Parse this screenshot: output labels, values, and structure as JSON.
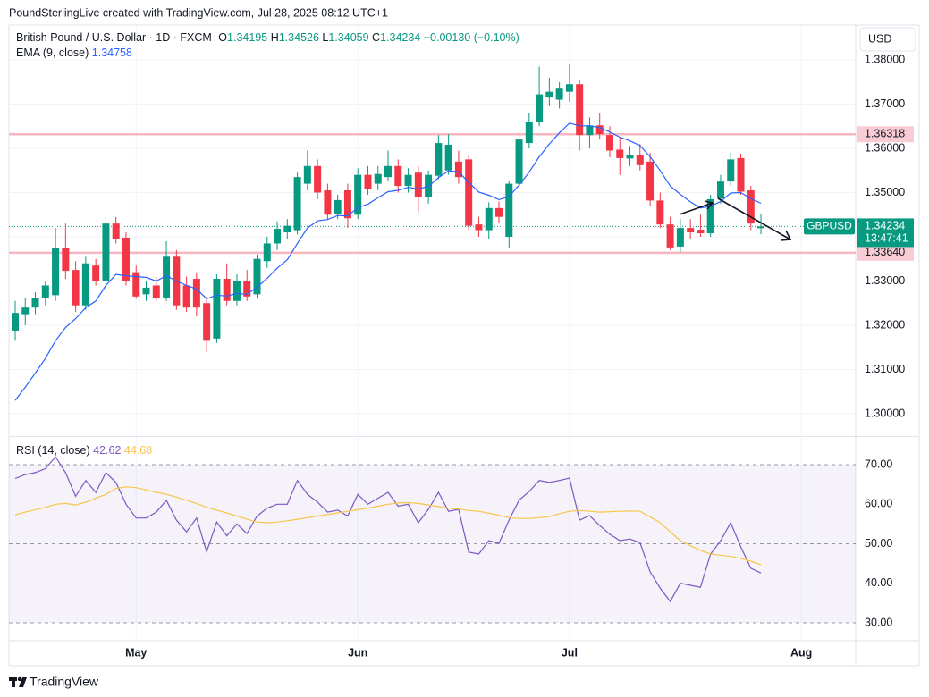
{
  "credit": "PoundSterlingLive created with TradingView.com, Jul 28, 2025 08:12 UTC+1",
  "currency": "USD",
  "footer": "TradingView",
  "chart_data": [
    {
      "type": "candlestick",
      "title": "British Pound / U.S. Dollar · 1D · FXCM",
      "ohlc_labels": [
        "O",
        "H",
        "L",
        "C"
      ],
      "ohlc_values": [
        "1.34195",
        "1.34526",
        "1.34059",
        "1.34234"
      ],
      "change": "−0.00130 (−0.10%)",
      "up_color": "#089981",
      "down_color": "#f23645",
      "open": [
        1.3188,
        1.3225,
        1.324,
        1.3262,
        1.3268,
        1.3375,
        1.3325,
        1.3245,
        1.3335,
        1.33,
        1.343,
        1.3398,
        1.332,
        1.327,
        1.329,
        1.3262,
        1.3355,
        1.329,
        1.3305,
        1.325,
        1.317,
        1.3305,
        1.3255,
        1.33,
        1.327,
        1.3345,
        1.3385,
        1.341,
        1.3415,
        1.352,
        1.356,
        1.3505,
        1.3452,
        1.3505,
        1.345,
        1.354,
        1.352,
        1.3535,
        1.356,
        1.3515,
        1.3545,
        1.349,
        1.3538,
        1.355,
        1.357,
        1.3575,
        1.3428,
        1.3415,
        1.3465,
        1.34,
        1.352,
        1.3612,
        1.366,
        1.3715,
        1.371,
        1.3728,
        1.3745,
        1.363,
        1.3652,
        1.363,
        1.3597,
        1.3577,
        1.3585,
        1.357,
        1.3482,
        1.3428,
        1.3378,
        1.342,
        1.3416,
        1.3408,
        1.3487,
        1.3525,
        1.3578,
        1.3505,
        1.34195
      ],
      "high": [
        1.3255,
        1.3262,
        1.3275,
        1.33,
        1.342,
        1.343,
        1.3345,
        1.3355,
        1.335,
        1.3445,
        1.3445,
        1.341,
        1.3335,
        1.33,
        1.331,
        1.339,
        1.337,
        1.331,
        1.332,
        1.3265,
        1.3315,
        1.334,
        1.3315,
        1.3325,
        1.336,
        1.34,
        1.3435,
        1.344,
        1.3545,
        1.3595,
        1.3575,
        1.352,
        1.3495,
        1.352,
        1.3555,
        1.356,
        1.356,
        1.3595,
        1.3575,
        1.3555,
        1.356,
        1.355,
        1.363,
        1.3632,
        1.3595,
        1.3585,
        1.3445,
        1.3478,
        1.348,
        1.3525,
        1.364,
        1.368,
        1.3785,
        1.376,
        1.375,
        1.379,
        1.3755,
        1.367,
        1.368,
        1.365,
        1.3625,
        1.3605,
        1.361,
        1.359,
        1.35,
        1.3445,
        1.344,
        1.344,
        1.345,
        1.3495,
        1.354,
        1.359,
        1.3588,
        1.3515,
        1.34526
      ],
      "low": [
        1.3165,
        1.32,
        1.3225,
        1.3245,
        1.3255,
        1.3305,
        1.323,
        1.3235,
        1.329,
        1.328,
        1.3385,
        1.329,
        1.326,
        1.3255,
        1.3255,
        1.3255,
        1.3235,
        1.323,
        1.322,
        1.314,
        1.316,
        1.3245,
        1.3245,
        1.3255,
        1.326,
        1.333,
        1.337,
        1.3395,
        1.3405,
        1.3505,
        1.3485,
        1.344,
        1.344,
        1.342,
        1.344,
        1.3495,
        1.3505,
        1.3525,
        1.35,
        1.35,
        1.3455,
        1.3475,
        1.353,
        1.354,
        1.352,
        1.3415,
        1.34,
        1.3395,
        1.343,
        1.3375,
        1.351,
        1.36,
        1.365,
        1.3695,
        1.369,
        1.3705,
        1.3595,
        1.36,
        1.362,
        1.358,
        1.354,
        1.356,
        1.355,
        1.347,
        1.342,
        1.337,
        1.3365,
        1.3395,
        1.34,
        1.34,
        1.3475,
        1.3515,
        1.3495,
        1.3415,
        1.34059
      ],
      "close": [
        1.3228,
        1.324,
        1.3262,
        1.329,
        1.3375,
        1.3323,
        1.3245,
        1.334,
        1.33,
        1.343,
        1.3395,
        1.33,
        1.3265,
        1.3285,
        1.3262,
        1.3355,
        1.3245,
        1.324,
        1.324,
        1.3165,
        1.3305,
        1.3255,
        1.33,
        1.3265,
        1.335,
        1.3385,
        1.3418,
        1.3425,
        1.3535,
        1.356,
        1.35,
        1.345,
        1.3483,
        1.3442,
        1.354,
        1.3508,
        1.3542,
        1.356,
        1.3515,
        1.354,
        1.349,
        1.354,
        1.3612,
        1.3608,
        1.3535,
        1.3425,
        1.3415,
        1.3465,
        1.3445,
        1.352,
        1.362,
        1.366,
        1.3722,
        1.3728,
        1.3735,
        1.3745,
        1.363,
        1.3652,
        1.3632,
        1.3595,
        1.3578,
        1.3584,
        1.3562,
        1.3482,
        1.3428,
        1.3376,
        1.342,
        1.341,
        1.3408,
        1.3485,
        1.3525,
        1.3575,
        1.3502,
        1.343,
        1.34234
      ],
      "overlay": {
        "name": "EMA (9, close)",
        "value_label": "1.34758",
        "color": "#2962ff",
        "values": [
          1.303,
          1.306,
          1.3092,
          1.3125,
          1.3165,
          1.3195,
          1.3215,
          1.324,
          1.3255,
          1.329,
          1.3315,
          1.3312,
          1.331,
          1.3308,
          1.33,
          1.3312,
          1.33,
          1.329,
          1.3282,
          1.326,
          1.3268,
          1.3266,
          1.3272,
          1.327,
          1.3286,
          1.3306,
          1.3329,
          1.3348,
          1.3385,
          1.342,
          1.3436,
          1.3439,
          1.3448,
          1.3447,
          1.3466,
          1.3474,
          1.3488,
          1.3502,
          1.3505,
          1.3512,
          1.3508,
          1.3514,
          1.3534,
          1.3549,
          1.3547,
          1.3523,
          1.3501,
          1.3494,
          1.3484,
          1.3491,
          1.3517,
          1.3546,
          1.3581,
          1.361,
          1.3635,
          1.3657,
          1.3651,
          1.3651,
          1.3647,
          1.3637,
          1.3625,
          1.3617,
          1.3606,
          1.3581,
          1.355,
          1.3515,
          1.3496,
          1.3479,
          1.3465,
          1.3469,
          1.348,
          1.3499,
          1.35,
          1.3486,
          1.34758
        ]
      },
      "levels": [
        {
          "value": 1.36318,
          "label": "1.36318"
        },
        {
          "value": 1.3364,
          "label": "1.33640"
        }
      ],
      "level_color": "#f7b6c0",
      "last_price": {
        "value": 1.34234,
        "label": "1.34234",
        "symbol": "GBPUSD",
        "countdown": "13:47:41"
      },
      "xlim": [
        -0.62,
        83.4
      ],
      "xticks": [
        {
          "value": 12,
          "label": "May"
        },
        {
          "value": 34,
          "label": "Jun"
        },
        {
          "value": 55,
          "label": "Jul"
        },
        {
          "value": 78,
          "label": "Aug"
        }
      ],
      "ylim": [
        1.29515,
        1.38788
      ],
      "yticks": [
        {
          "value": 1.38,
          "label": "1.38000"
        },
        {
          "value": 1.37,
          "label": "1.37000"
        },
        {
          "value": 1.36,
          "label": "1.36000"
        },
        {
          "value": 1.35,
          "label": "1.35000"
        },
        {
          "value": 1.34,
          "label": "1.34000"
        },
        {
          "value": 1.33,
          "label": "1.33000"
        },
        {
          "value": 1.32,
          "label": "1.32000"
        },
        {
          "value": 1.31,
          "label": "1.31000"
        },
        {
          "value": 1.3,
          "label": "1.30000"
        }
      ],
      "grid": true
    },
    {
      "type": "line",
      "title": "RSI (14, close)",
      "series": [
        {
          "color": "#7e57c2",
          "value_label": "42.62",
          "values": [
            66.5,
            67.5,
            68,
            69,
            72,
            68,
            62,
            66,
            63,
            68,
            65.5,
            60,
            56.5,
            56.5,
            58,
            61,
            56,
            53,
            56.5,
            48,
            55.5,
            52,
            55,
            52.6,
            57,
            59,
            60,
            60,
            66,
            62.5,
            60.5,
            58,
            58.5,
            57,
            62.5,
            60,
            61.5,
            63,
            59.5,
            60,
            55.3,
            58.7,
            63,
            58.2,
            58.7,
            47.9,
            47.4,
            50.8,
            50.1,
            56,
            61,
            63.2,
            66,
            65.5,
            66,
            66.6,
            56,
            57.1,
            54.6,
            52.4,
            50.8,
            51.2,
            50.3,
            42.9,
            38.8,
            35.4,
            40,
            39.5,
            39,
            47.4,
            50.8,
            55.3,
            49.2,
            43.8,
            42.62
          ]
        },
        {
          "color": "#f7c548",
          "value_label": "44.68",
          "values": [
            57.3,
            58,
            58.6,
            59.2,
            60,
            60.2,
            59.8,
            60.5,
            61.5,
            62.5,
            64,
            64.4,
            64.2,
            63.6,
            63,
            62.5,
            61.8,
            61,
            60.2,
            59.2,
            58.5,
            57.8,
            57,
            56.2,
            55.5,
            55.3,
            55.5,
            55.8,
            56.2,
            56.6,
            57,
            57.4,
            57.8,
            58.2,
            58.6,
            59,
            59.5,
            60,
            60.3,
            60.4,
            60.2,
            59.8,
            59.4,
            59,
            58.8,
            58.4,
            58.2,
            57.7,
            57.2,
            56.6,
            56.4,
            56.4,
            56.6,
            56.9,
            57.6,
            58.2,
            58.4,
            58.2,
            58,
            58.1,
            58.2,
            58.3,
            58.2,
            56.8,
            55.3,
            53,
            50.8,
            49.5,
            48.3,
            47.4,
            47.1,
            46.8,
            46.3,
            45.6,
            44.68
          ]
        }
      ],
      "levels": [
        70,
        50,
        30
      ],
      "band_color": "#7e57c2",
      "ylim": [
        25.48,
        76.78
      ],
      "yticks": [
        {
          "value": 70,
          "label": "70.00"
        },
        {
          "value": 60,
          "label": "60.00"
        },
        {
          "value": 50,
          "label": "50.00"
        },
        {
          "value": 40,
          "label": "40.00"
        },
        {
          "value": 30,
          "label": "30.00"
        }
      ]
    }
  ]
}
